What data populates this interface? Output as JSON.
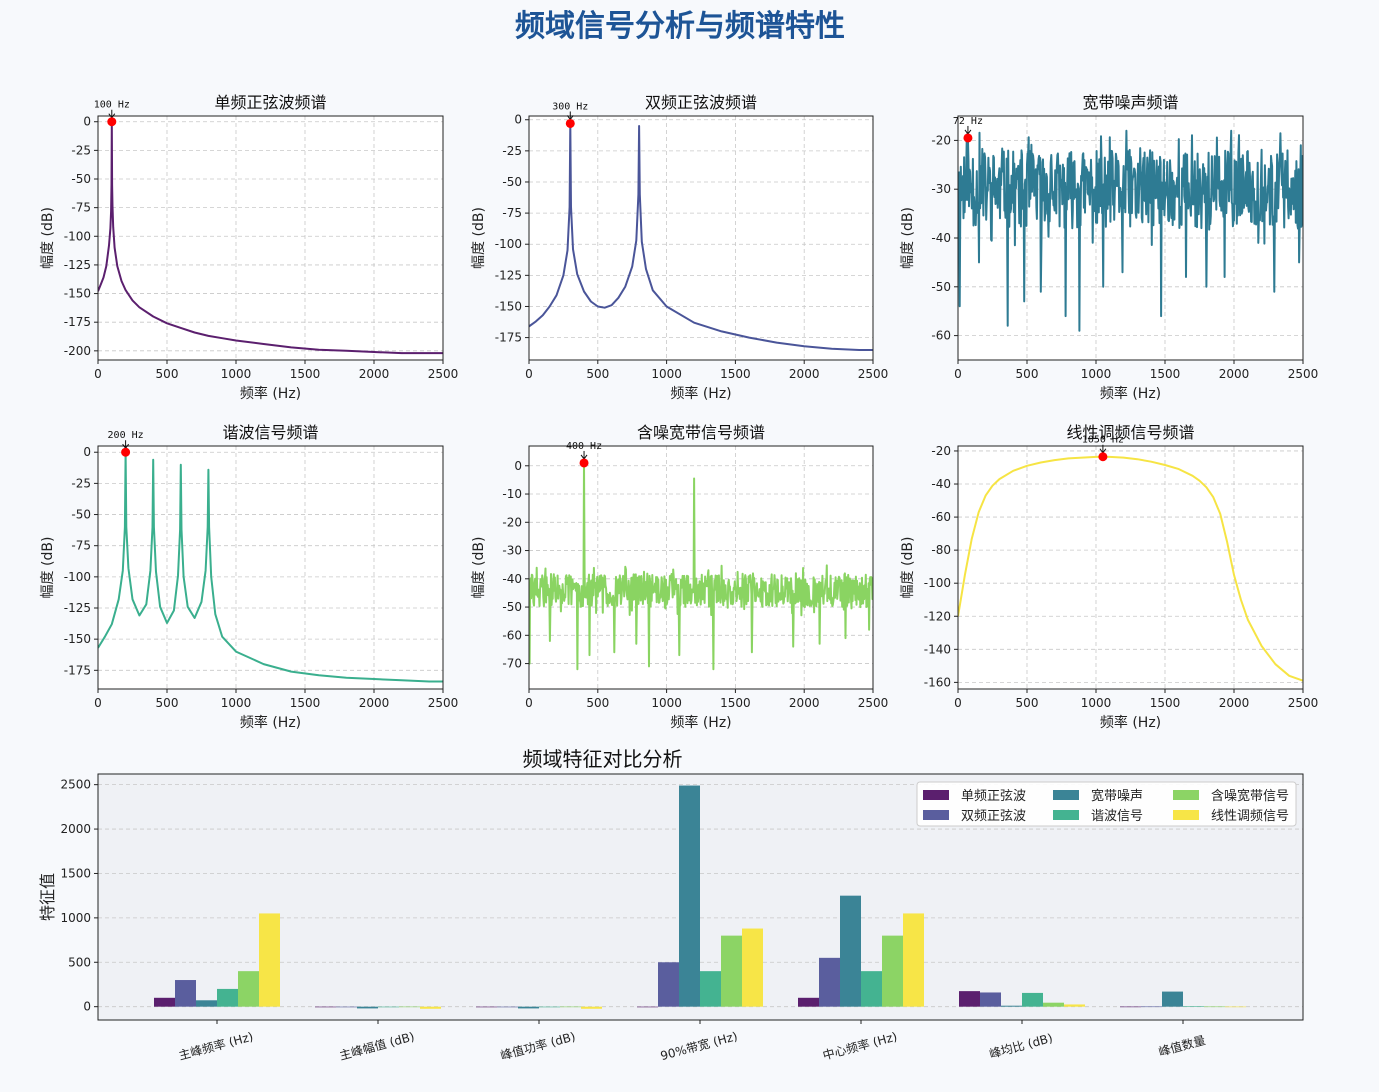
{
  "figure": {
    "title": "频域信号分析与频谱特性",
    "background": "#f7f9fc"
  },
  "chart_data": [
    {
      "type": "line",
      "title": "单频正弦波频谱",
      "xlabel": "频率 (Hz)",
      "ylabel": "幅度 (dB)",
      "color": "#5b1f6e",
      "xlim": [
        0,
        2500
      ],
      "ylim": [
        -208,
        5
      ],
      "xticks": [
        0,
        500,
        1000,
        1500,
        2000,
        2500
      ],
      "yticks": [
        0,
        -25,
        -50,
        -75,
        -100,
        -125,
        -150,
        -175,
        -200
      ],
      "grid": true,
      "peak": {
        "x": 100,
        "y": 0,
        "label": "100 Hz"
      },
      "x": [
        0,
        20,
        40,
        60,
        80,
        90,
        95,
        98,
        100,
        102,
        105,
        110,
        120,
        140,
        170,
        200,
        250,
        300,
        400,
        500,
        600,
        700,
        800,
        900,
        1000,
        1200,
        1400,
        1600,
        1800,
        2000,
        2200,
        2400,
        2500
      ],
      "y": [
        -148,
        -142,
        -136,
        -126,
        -108,
        -93,
        -78,
        -55,
        0,
        -55,
        -74,
        -92,
        -110,
        -126,
        -139,
        -147,
        -156,
        -162,
        -170,
        -176,
        -180,
        -184,
        -187,
        -189,
        -191,
        -194,
        -197,
        -199,
        -200,
        -201,
        -202,
        -202,
        -202
      ]
    },
    {
      "type": "line",
      "title": "双频正弦波频谱",
      "xlabel": "频率 (Hz)",
      "ylabel": "幅度 (dB)",
      "color": "#4a5599",
      "xlim": [
        0,
        2500
      ],
      "ylim": [
        -193,
        3
      ],
      "xticks": [
        0,
        500,
        1000,
        1500,
        2000,
        2500
      ],
      "yticks": [
        0,
        -25,
        -50,
        -75,
        -100,
        -125,
        -150,
        -175
      ],
      "grid": true,
      "peak": {
        "x": 300,
        "y": -3,
        "label": "300 Hz"
      },
      "x": [
        0,
        50,
        100,
        150,
        200,
        250,
        280,
        295,
        300,
        305,
        320,
        350,
        400,
        450,
        500,
        550,
        600,
        650,
        700,
        750,
        780,
        795,
        800,
        805,
        820,
        850,
        900,
        1000,
        1200,
        1400,
        1600,
        1800,
        2000,
        2200,
        2400,
        2500
      ],
      "y": [
        -166,
        -162,
        -157,
        -150,
        -141,
        -125,
        -105,
        -70,
        -3,
        -70,
        -104,
        -124,
        -138,
        -146,
        -150,
        -151,
        -149,
        -143,
        -134,
        -118,
        -97,
        -60,
        -5,
        -60,
        -98,
        -120,
        -137,
        -150,
        -163,
        -170,
        -175,
        -179,
        -182,
        -184,
        -185,
        -185
      ]
    },
    {
      "type": "line",
      "title": "宽带噪声频谱",
      "xlabel": "频率 (Hz)",
      "ylabel": "幅度 (dB)",
      "color": "#2e7b93",
      "xlim": [
        0,
        2500
      ],
      "ylim": [
        -65,
        -15
      ],
      "xticks": [
        0,
        500,
        1000,
        1500,
        2000,
        2500
      ],
      "yticks": [
        -20,
        -30,
        -40,
        -50,
        -60
      ],
      "grid": true,
      "noise": {
        "mean": -30,
        "spread": 8,
        "seed": 11,
        "dips": [
          [
            10,
            -54
          ],
          [
            150,
            -45
          ],
          [
            360,
            -58
          ],
          [
            480,
            -53
          ],
          [
            600,
            -51
          ],
          [
            780,
            -56
          ],
          [
            880,
            -59
          ],
          [
            1050,
            -50
          ],
          [
            1190,
            -47
          ],
          [
            1470,
            -56
          ],
          [
            1650,
            -48
          ],
          [
            1800,
            -50
          ],
          [
            1930,
            -48
          ],
          [
            2290,
            -51
          ],
          [
            2470,
            -45
          ]
        ]
      },
      "peak": {
        "x": 72,
        "y": -19.5,
        "label": "72 Hz"
      }
    },
    {
      "type": "line",
      "title": "谐波信号频谱",
      "xlabel": "频率 (Hz)",
      "ylabel": "幅度 (dB)",
      "color": "#3aaf8e",
      "xlim": [
        0,
        2500
      ],
      "ylim": [
        -190,
        5
      ],
      "xticks": [
        0,
        500,
        1000,
        1500,
        2000,
        2500
      ],
      "yticks": [
        0,
        -25,
        -50,
        -75,
        -100,
        -125,
        -150,
        -175
      ],
      "grid": true,
      "peak": {
        "x": 200,
        "y": 0,
        "label": "200 Hz"
      },
      "x": [
        0,
        50,
        100,
        150,
        180,
        195,
        200,
        205,
        220,
        250,
        300,
        350,
        380,
        395,
        400,
        405,
        420,
        450,
        500,
        550,
        580,
        595,
        600,
        605,
        620,
        650,
        700,
        750,
        780,
        795,
        800,
        805,
        820,
        850,
        900,
        1000,
        1200,
        1400,
        1600,
        1800,
        2000,
        2200,
        2400,
        2500
      ],
      "y": [
        -157,
        -148,
        -138,
        -118,
        -95,
        -60,
        0,
        -60,
        -93,
        -118,
        -131,
        -122,
        -95,
        -60,
        -6,
        -60,
        -96,
        -124,
        -137,
        -127,
        -99,
        -62,
        -10,
        -62,
        -100,
        -124,
        -133,
        -120,
        -95,
        -60,
        -14,
        -60,
        -100,
        -130,
        -148,
        -160,
        -170,
        -176,
        -179,
        -181,
        -182,
        -183,
        -184,
        -184
      ]
    },
    {
      "type": "line",
      "title": "含噪宽带信号频谱",
      "xlabel": "频率 (Hz)",
      "ylabel": "幅度 (dB)",
      "color": "#8ad462",
      "xlim": [
        0,
        2500
      ],
      "ylim": [
        -79,
        7
      ],
      "xticks": [
        0,
        500,
        1000,
        1500,
        2000,
        2500
      ],
      "yticks": [
        0,
        -10,
        -20,
        -30,
        -40,
        -50,
        -60,
        -70
      ],
      "grid": true,
      "noise": {
        "mean": -44,
        "spread": 6,
        "seed": 29,
        "dips": [
          [
            5,
            -70
          ],
          [
            150,
            -62
          ],
          [
            350,
            -72
          ],
          [
            440,
            -67
          ],
          [
            620,
            -66
          ],
          [
            780,
            -63
          ],
          [
            870,
            -71
          ],
          [
            1090,
            -67
          ],
          [
            1340,
            -72
          ],
          [
            1620,
            -66
          ],
          [
            1920,
            -64
          ],
          [
            2110,
            -63
          ],
          [
            2300,
            -61
          ],
          [
            2470,
            -58
          ]
        ]
      },
      "spikes": [
        [
          400,
          0.5
        ],
        [
          1200,
          -4.5
        ]
      ],
      "peak": {
        "x": 400,
        "y": 1,
        "label": "400 Hz"
      }
    },
    {
      "type": "line",
      "title": "线性调频信号频谱",
      "xlabel": "频率 (Hz)",
      "ylabel": "幅度 (dB)",
      "color": "#f6e444",
      "xlim": [
        0,
        2500
      ],
      "ylim": [
        -164,
        -17
      ],
      "xticks": [
        0,
        500,
        1000,
        1500,
        2000,
        2500
      ],
      "yticks": [
        -20,
        -40,
        -60,
        -80,
        -100,
        -120,
        -140,
        -160
      ],
      "grid": true,
      "peak": {
        "x": 1050,
        "y": -23.5,
        "label": "1050 Hz"
      },
      "x": [
        0,
        50,
        100,
        150,
        200,
        250,
        300,
        400,
        500,
        600,
        700,
        800,
        900,
        1000,
        1050,
        1100,
        1200,
        1300,
        1400,
        1500,
        1600,
        1700,
        1750,
        1800,
        1850,
        1900,
        1950,
        2000,
        2050,
        2100,
        2200,
        2300,
        2400,
        2500
      ],
      "y": [
        -120,
        -95,
        -73,
        -57,
        -47,
        -41,
        -37,
        -32,
        -29,
        -27,
        -25.5,
        -24.5,
        -24,
        -23.6,
        -23.5,
        -23.6,
        -24,
        -25,
        -26.5,
        -28.5,
        -31,
        -35,
        -38,
        -42,
        -48,
        -58,
        -75,
        -95,
        -110,
        -122,
        -138,
        -149,
        -156,
        -159
      ]
    },
    {
      "type": "bar",
      "title": "频域特征对比分析",
      "xlabel": "",
      "ylabel": "特征值",
      "ylim": [
        -150,
        2620
      ],
      "yticks": [
        0,
        500,
        1000,
        1500,
        2000,
        2500
      ],
      "grid": true,
      "legend_position": "top-right",
      "categories": [
        "主峰频率 (Hz)",
        "主峰幅值 (dB)",
        "峰值功率 (dB)",
        "90%带宽 (Hz)",
        "中心频率 (Hz)",
        "峰均比 (dB)",
        "峰值数量"
      ],
      "series": [
        {
          "name": "单频正弦波",
          "color": "#5b1f6e",
          "values": [
            100,
            0,
            0,
            0,
            100,
            175,
            1
          ]
        },
        {
          "name": "双频正弦波",
          "color": "#5a5e9e",
          "values": [
            300,
            -3,
            -3,
            500,
            550,
            160,
            2
          ]
        },
        {
          "name": "宽带噪声",
          "color": "#3b8496",
          "values": [
            72,
            -19.5,
            -19.5,
            2490,
            1250,
            11,
            170
          ]
        },
        {
          "name": "谐波信号",
          "color": "#44b391",
          "values": [
            200,
            0,
            0,
            400,
            400,
            155,
            4
          ]
        },
        {
          "name": "含噪宽带信号",
          "color": "#8cd465",
          "values": [
            400,
            1,
            1,
            800,
            800,
            45,
            2
          ]
        },
        {
          "name": "线性调频信号",
          "color": "#f7e547",
          "values": [
            1050,
            -23.5,
            -23.5,
            880,
            1050,
            25,
            1
          ]
        }
      ]
    }
  ]
}
